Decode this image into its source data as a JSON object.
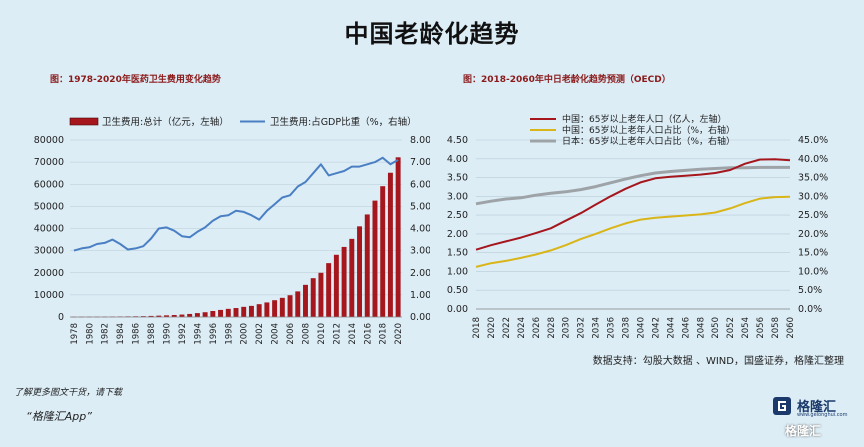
{
  "title": "中国老龄化趋势",
  "source_note": "数据支持：勾股大数据 、WIND，国盛证券，格隆汇整理",
  "footer": {
    "more": "了解更多图文干货，请下载",
    "app": "“格隆汇App”"
  },
  "logo": {
    "name": "格隆汇",
    "url": "www.gelonghui.com",
    "watermark": "格隆汇"
  },
  "chart_data": [
    {
      "type": "bar",
      "title": "图：1978-2020年医药卫生费用变化趋势",
      "categories": [
        "1978",
        "1979",
        "1980",
        "1981",
        "1982",
        "1983",
        "1984",
        "1985",
        "1986",
        "1987",
        "1988",
        "1989",
        "1990",
        "1991",
        "1992",
        "1993",
        "1994",
        "1995",
        "1996",
        "1997",
        "1998",
        "1999",
        "2000",
        "2001",
        "2002",
        "2003",
        "2004",
        "2005",
        "2006",
        "2007",
        "2008",
        "2009",
        "2010",
        "2011",
        "2012",
        "2013",
        "2014",
        "2015",
        "2016",
        "2017",
        "2018",
        "2019",
        "2020"
      ],
      "x_tick_labels": [
        "1978",
        "1980",
        "1982",
        "1984",
        "1986",
        "1988",
        "1990",
        "1992",
        "1994",
        "1996",
        "1998",
        "2000",
        "2002",
        "2004",
        "2006",
        "2008",
        "2010",
        "2012",
        "2014",
        "2016",
        "2018",
        "2020"
      ],
      "series": [
        {
          "name": "卫生费用:总计（亿元，左轴）",
          "axis": "left",
          "color": "#a5161d",
          "values": [
            110,
            121,
            143,
            160,
            177,
            207,
            242,
            279,
            316,
            379,
            488,
            616,
            747,
            893,
            1097,
            1378,
            1761,
            2155,
            2709,
            3197,
            3679,
            4048,
            4587,
            5026,
            5790,
            6584,
            7590,
            8660,
            9843,
            11574,
            14535,
            17542,
            19980,
            24346,
            28119,
            31669,
            35312,
            40975,
            46345,
            52598,
            59122,
            65196,
            72176
          ]
        },
        {
          "name": "卫生费用:占GDP比重（%，右轴）",
          "axis": "right",
          "type": "line",
          "color": "#4a7fc4",
          "values": [
            3.0,
            3.1,
            3.15,
            3.3,
            3.35,
            3.5,
            3.3,
            3.05,
            3.1,
            3.2,
            3.55,
            4.0,
            4.05,
            3.9,
            3.65,
            3.6,
            3.85,
            4.05,
            4.35,
            4.55,
            4.6,
            4.8,
            4.75,
            4.6,
            4.4,
            4.8,
            5.1,
            5.4,
            5.5,
            5.9,
            6.1,
            6.5,
            6.9,
            6.4,
            6.5,
            6.6,
            6.8,
            6.8,
            6.9,
            7.0,
            7.2,
            6.9,
            7.1
          ]
        }
      ],
      "y_left": {
        "min": 0,
        "max": 80000,
        "ticks": [
          "0",
          "10000",
          "20000",
          "30000",
          "40000",
          "50000",
          "60000",
          "70000",
          "80000"
        ]
      },
      "y_right": {
        "min": 0,
        "max": 8,
        "ticks": [
          "0.00",
          "1.00",
          "2.00",
          "3.00",
          "4.00",
          "5.00",
          "6.00",
          "7.00",
          "8.00"
        ]
      },
      "grid": true,
      "legend": "top"
    },
    {
      "type": "line",
      "title": "图：2018-2060年中日老龄化趋势预测（OECD）",
      "x": [
        2018,
        2020,
        2022,
        2024,
        2026,
        2028,
        2030,
        2032,
        2034,
        2036,
        2038,
        2040,
        2042,
        2044,
        2046,
        2048,
        2050,
        2052,
        2054,
        2056,
        2058,
        2060
      ],
      "x_tick_labels": [
        "2018",
        "2020",
        "2022",
        "2024",
        "2026",
        "2028",
        "2030",
        "2032",
        "2034",
        "2036",
        "2038",
        "2040",
        "2042",
        "2044",
        "2046",
        "2048",
        "2050",
        "2052",
        "2054",
        "2056",
        "2058",
        "2060"
      ],
      "series": [
        {
          "name": "中国：65岁以上老年人口（亿人，左轴）",
          "axis": "left",
          "color": "#a5161d",
          "values": [
            1.58,
            1.7,
            1.8,
            1.9,
            2.02,
            2.15,
            2.35,
            2.55,
            2.78,
            3.0,
            3.2,
            3.37,
            3.48,
            3.52,
            3.55,
            3.58,
            3.62,
            3.7,
            3.87,
            3.98,
            3.99,
            3.96
          ]
        },
        {
          "name": "中国：65岁以上老年人口占比（%，右轴）",
          "axis": "right",
          "color": "#d9b518",
          "values": [
            11.2,
            12.2,
            12.8,
            13.6,
            14.5,
            15.6,
            17.0,
            18.6,
            20.0,
            21.5,
            22.8,
            23.8,
            24.3,
            24.6,
            24.9,
            25.2,
            25.7,
            26.8,
            28.2,
            29.4,
            29.8,
            29.9
          ]
        },
        {
          "name": "日本：65岁以上老年人口占比（%，右轴）",
          "axis": "right",
          "color": "#9ea3a8",
          "values": [
            28.0,
            28.7,
            29.3,
            29.6,
            30.3,
            30.8,
            31.2,
            31.8,
            32.6,
            33.6,
            34.6,
            35.5,
            36.2,
            36.6,
            36.9,
            37.2,
            37.4,
            37.6,
            37.6,
            37.7,
            37.7,
            37.7
          ]
        }
      ],
      "y_left": {
        "min": 0,
        "max": 4.5,
        "ticks": [
          "0.00",
          "0.50",
          "1.00",
          "1.50",
          "2.00",
          "2.50",
          "3.00",
          "3.50",
          "4.00",
          "4.50"
        ]
      },
      "y_right": {
        "min": 0,
        "max": 45,
        "ticks": [
          "0.0%",
          "5.0%",
          "10.0%",
          "15.0%",
          "20.0%",
          "25.0%",
          "30.0%",
          "35.0%",
          "40.0%",
          "45.0%"
        ]
      },
      "grid": true,
      "legend": "top-left"
    }
  ]
}
